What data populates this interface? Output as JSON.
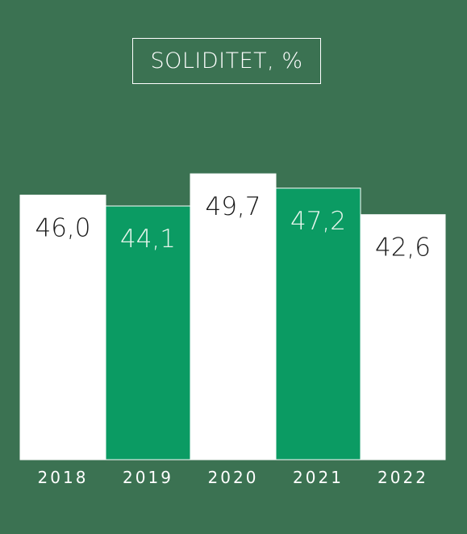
{
  "chart_data": {
    "type": "bar",
    "title": "SOLIDITET, %",
    "categories": [
      "2018",
      "2019",
      "2020",
      "2021",
      "2022"
    ],
    "values": [
      46.0,
      44.1,
      49.7,
      47.2,
      42.6
    ],
    "value_labels": [
      "46,0",
      "44,1",
      "49,7",
      "47,2",
      "42,6"
    ],
    "xlabel": "",
    "ylabel": "",
    "ylim": [
      0,
      100
    ],
    "grid": false,
    "legend": "none",
    "bar_colors": [
      "#ffffff",
      "#0b9b63",
      "#ffffff",
      "#0b9b63",
      "#ffffff"
    ],
    "label_colors": [
      "#1a1a1a",
      "#e6f5ec",
      "#1a1a1a",
      "#e6f5ec",
      "#1a1a1a"
    ]
  },
  "colors": {
    "background": "#3b7252",
    "tick_label": "#ffffff"
  }
}
